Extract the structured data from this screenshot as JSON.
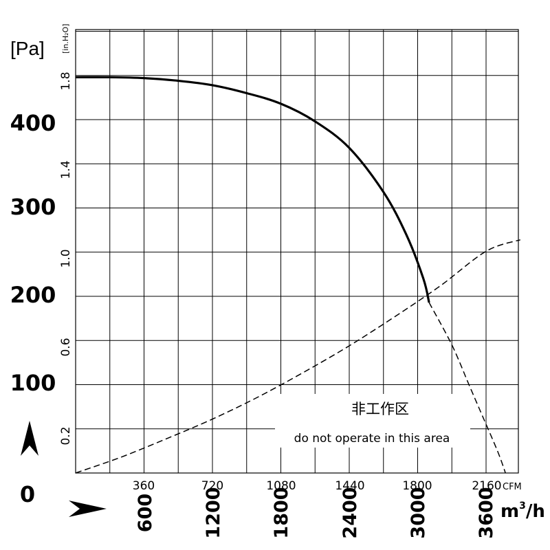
{
  "chart_data": {
    "type": "line",
    "units": {
      "pa": "[Pa]",
      "inh2o": "[in.H₂O]",
      "cfm": "CFM",
      "m3h_base": "m",
      "m3h_exp": "3",
      "m3h_tail": "/h"
    },
    "y_pa_ticks": [
      "0",
      "100",
      "200",
      "300",
      "400"
    ],
    "y_inh2o_ticks": [
      "0.2",
      "0.6",
      "1.0",
      "1.4",
      "1.8"
    ],
    "x_cfm_ticks": [
      "360",
      "720",
      "1080",
      "1440",
      "1800",
      "2160"
    ],
    "x_m3h_ticks": [
      "600",
      "1200",
      "1800",
      "2400",
      "3000",
      "3600"
    ],
    "ylim_pa": [
      0,
      500
    ],
    "xlim_m3h": [
      0,
      3900
    ],
    "arrows": {
      "up": "up-arrow",
      "right": "right-arrow"
    },
    "annotation": {
      "line1": "非工作区",
      "line2": "do not operate in this area"
    },
    "series": [
      {
        "style": "solid",
        "x": [
          0,
          300,
          600,
          900,
          1200,
          1500,
          1800,
          2100,
          2400,
          2700,
          2900,
          3050,
          3100
        ],
        "y": [
          448,
          448,
          447,
          444,
          439,
          430,
          418,
          398,
          368,
          318,
          270,
          220,
          193
        ]
      },
      {
        "style": "dashed",
        "x": [
          3100,
          3300,
          3450,
          3550,
          3700,
          3770
        ],
        "y": [
          193,
          145,
          100,
          70,
          25,
          0
        ]
      },
      {
        "style": "dashed",
        "x": [
          0,
          400,
          800,
          1200,
          1600,
          2000,
          2400,
          2800,
          3200,
          3600,
          3900
        ],
        "y": [
          0,
          18,
          39,
          61,
          86,
          114,
          144,
          177,
          212,
          251,
          264
        ]
      }
    ]
  }
}
